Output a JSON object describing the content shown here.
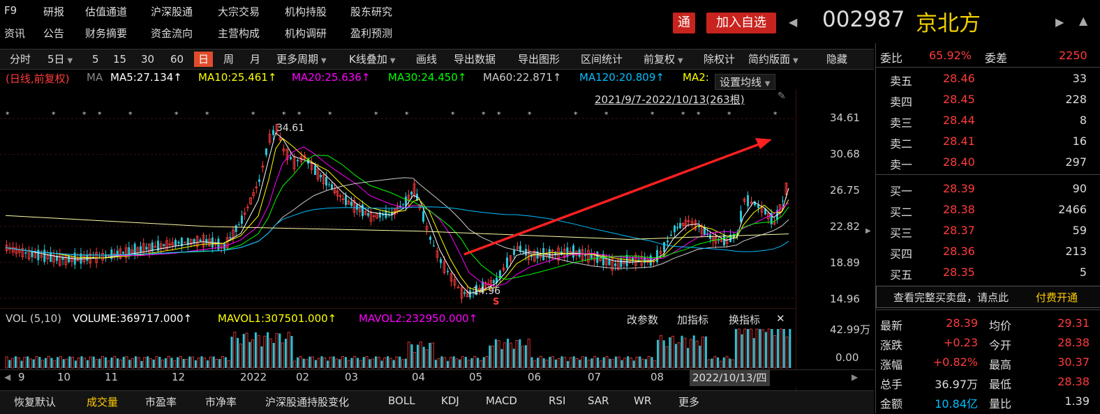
{
  "topnav": {
    "row1": [
      "F9",
      "研报",
      "估值通道",
      "沪深股通",
      "大宗交易",
      "机构持股",
      "股东研究"
    ],
    "row2": [
      "资讯",
      "公告",
      "财务摘要",
      "资金流向",
      "主营构成",
      "机构调研",
      "盈利预测"
    ]
  },
  "header": {
    "tong_label": "通",
    "add_watch_label": "加入自选",
    "prev_arrow": "◀",
    "next_arrow": "◀",
    "more_arrow": "▲",
    "stock_code": "002987",
    "stock_name": "京北方"
  },
  "toolbar": {
    "items": [
      "分时",
      "5日",
      "5",
      "15",
      "30",
      "60",
      "日",
      "周",
      "月",
      "更多周期",
      "K线叠加",
      "画线",
      "导出数据",
      "导出图形",
      "区间统计",
      "前复权",
      "除权计",
      "简约版面",
      "隐藏"
    ],
    "active": "日"
  },
  "ma_bar": {
    "prefix": "(日线,前复权)",
    "ma": "MA",
    "ma5": "MA5:27.134↑",
    "ma10": "MA10:25.461↑",
    "ma20": "MA20:25.636↑",
    "ma30": "MA30:24.450↑",
    "ma60": "MA60:22.871↑",
    "ma120": "MA120:20.809↑",
    "ma250": "MA2:",
    "settings": "设置均线",
    "range": "2021/9/7-2022/10/13(263根)"
  },
  "price_axis": [
    "34.61",
    "30.68",
    "26.75",
    "22.82",
    "18.89",
    "14.96"
  ],
  "annotations": {
    "high": "34.61",
    "low": "14.96",
    "s_marker": "S"
  },
  "volume_bar": {
    "label": "VOL (5,10)",
    "volume": "VOLUME:369717.000↑",
    "mavol1": "MAVOL1:307501.000↑",
    "mavol2": "MAVOL2:232950.000↑",
    "btn1": "改参数",
    "btn2": "加指标",
    "btn3": "换指标",
    "close": "✕",
    "axis_top": "42.99万",
    "axis_bottom": "0.00"
  },
  "x_axis": [
    "9",
    "10",
    "11",
    "12",
    "2022",
    "02",
    "03",
    "04",
    "05",
    "06",
    "07",
    "08"
  ],
  "x_cursor": "2022/10/13/四",
  "bottom_tabs": [
    "恢复默认",
    "成交量",
    "市盈率",
    "市净率",
    "沪深股通持股变化",
    "BOLL",
    "KDJ",
    "MACD",
    "RSI",
    "SAR",
    "WR",
    "更多"
  ],
  "bottom_active": "成交量",
  "order_book": {
    "webi_label": "委比",
    "webi_value": "65.92%",
    "weicha_label": "委差",
    "weicha_value": "2250",
    "asks": [
      {
        "label": "卖五",
        "price": "28.46",
        "vol": "33"
      },
      {
        "label": "卖四",
        "price": "28.45",
        "vol": "228"
      },
      {
        "label": "卖三",
        "price": "28.44",
        "vol": "8"
      },
      {
        "label": "卖二",
        "price": "28.41",
        "vol": "16"
      },
      {
        "label": "卖一",
        "price": "28.40",
        "vol": "297"
      }
    ],
    "bids": [
      {
        "label": "买一",
        "price": "28.39",
        "vol": "90"
      },
      {
        "label": "买二",
        "price": "28.38",
        "vol": "2466"
      },
      {
        "label": "买三",
        "price": "28.37",
        "vol": "59"
      },
      {
        "label": "买四",
        "price": "28.36",
        "vol": "213"
      },
      {
        "label": "买五",
        "price": "28.35",
        "vol": "5"
      }
    ],
    "full_book_text": "查看完整买卖盘，请点此",
    "paid_text": "付费开通"
  },
  "quote": [
    {
      "l1": "最新",
      "v1": "28.39",
      "l2": "均价",
      "v2": "29.31"
    },
    {
      "l1": "涨跌",
      "v1": "+0.23",
      "l2": "今开",
      "v2": "28.38"
    },
    {
      "l1": "涨幅",
      "v1": "+0.82%",
      "l2": "最高",
      "v2": "30.37"
    },
    {
      "l1": "总手",
      "v1": "36.97万",
      "l2": "最低",
      "v2": "28.38"
    },
    {
      "l1": "金额",
      "v1": "10.84亿",
      "l2": "量比",
      "v2": "1.39"
    }
  ],
  "colors": {
    "up": "#ff3b3b",
    "down": "#27c6d8",
    "ma5": "#ffffff",
    "ma10": "#ffff00",
    "ma20": "#ff00ff",
    "ma30": "#00ff00",
    "ma60": "#cccccc",
    "ma120": "#00bfff",
    "accent": "#e04b2c"
  }
}
